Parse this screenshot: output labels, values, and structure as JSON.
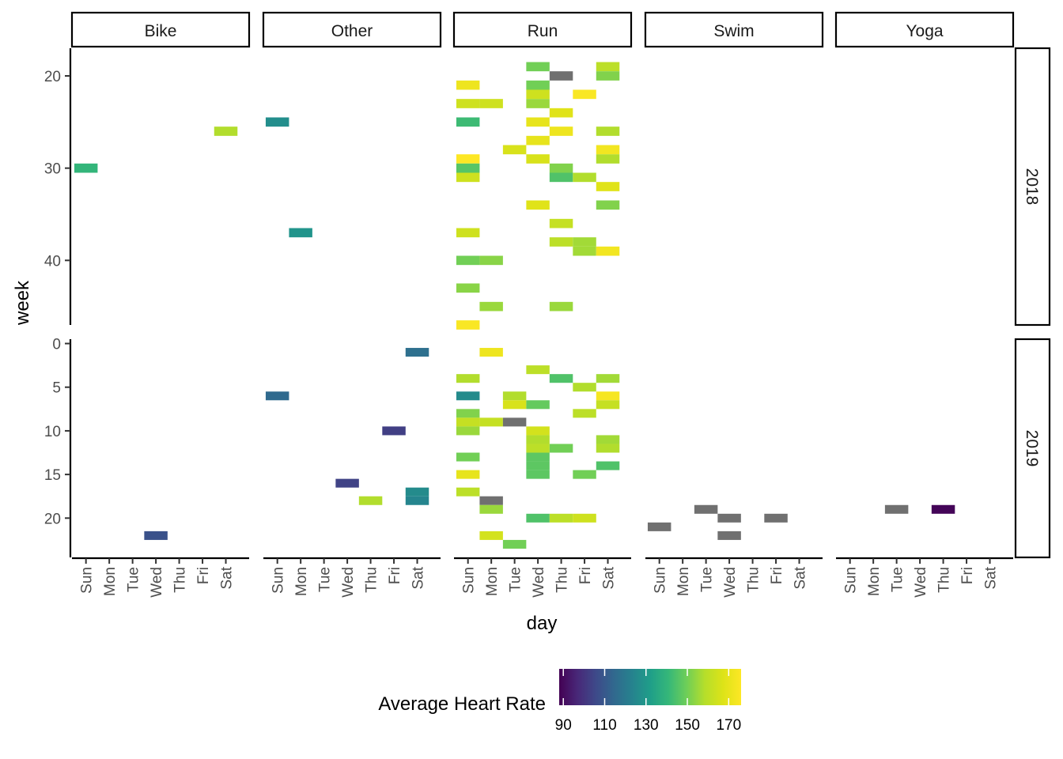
{
  "chart_data": {
    "type": "heatmap",
    "xlabel": "day",
    "ylabel": "week",
    "days": [
      "Sun",
      "Mon",
      "Tue",
      "Wed",
      "Thu",
      "Fri",
      "Sat"
    ],
    "activities": [
      "Bike",
      "Other",
      "Run",
      "Swim",
      "Yoga"
    ],
    "years": [
      "2018",
      "2019"
    ],
    "week_range": {
      "2018": [
        17,
        47
      ],
      "2019": [
        -0.5,
        24.5
      ]
    },
    "week_ticks": {
      "2018": [
        20,
        30,
        40
      ],
      "2019": [
        0,
        5,
        10,
        15,
        20
      ]
    },
    "y_reversed": true,
    "missing_color": "#707070",
    "legend": {
      "title": "Average Heart Rate",
      "position": "bottom",
      "min": 88,
      "max": 176,
      "ticks": [
        90,
        110,
        130,
        150,
        170
      ],
      "palette": "viridis"
    },
    "cells": [
      {
        "a": "Bike",
        "y": "2018",
        "w": 30,
        "d": "Sun",
        "hr": 140
      },
      {
        "a": "Bike",
        "y": "2018",
        "w": 26,
        "d": "Sat",
        "hr": 158
      },
      {
        "a": "Bike",
        "y": "2019",
        "w": 22,
        "d": "Wed",
        "hr": 108
      },
      {
        "a": "Other",
        "y": "2018",
        "w": 25,
        "d": "Sun",
        "hr": 127
      },
      {
        "a": "Other",
        "y": "2018",
        "w": 37,
        "d": "Mon",
        "hr": 129
      },
      {
        "a": "Other",
        "y": "2019",
        "w": 1,
        "d": "Sat",
        "hr": 117
      },
      {
        "a": "Other",
        "y": "2019",
        "w": 6,
        "d": "Sun",
        "hr": 115
      },
      {
        "a": "Other",
        "y": "2019",
        "w": 10,
        "d": "Fri",
        "hr": 103
      },
      {
        "a": "Other",
        "y": "2019",
        "w": 16,
        "d": "Wed",
        "hr": 104
      },
      {
        "a": "Other",
        "y": "2019",
        "w": 17,
        "d": "Sat",
        "hr": 126
      },
      {
        "a": "Other",
        "y": "2019",
        "w": 18,
        "d": "Sat",
        "hr": 124
      },
      {
        "a": "Other",
        "y": "2019",
        "w": 18,
        "d": "Thu",
        "hr": 158
      },
      {
        "a": "Run",
        "y": "2018",
        "w": 19,
        "d": "Wed",
        "hr": 150
      },
      {
        "a": "Run",
        "y": "2018",
        "w": 19,
        "d": "Sat",
        "hr": 160
      },
      {
        "a": "Run",
        "y": "2018",
        "w": 20,
        "d": "Thu",
        "hr": null
      },
      {
        "a": "Run",
        "y": "2018",
        "w": 20,
        "d": "Sat",
        "hr": 152
      },
      {
        "a": "Run",
        "y": "2018",
        "w": 21,
        "d": "Sun",
        "hr": 172
      },
      {
        "a": "Run",
        "y": "2018",
        "w": 21,
        "d": "Wed",
        "hr": 150
      },
      {
        "a": "Run",
        "y": "2018",
        "w": 22,
        "d": "Wed",
        "hr": 164
      },
      {
        "a": "Run",
        "y": "2018",
        "w": 22,
        "d": "Fri",
        "hr": 175
      },
      {
        "a": "Run",
        "y": "2018",
        "w": 23,
        "d": "Sun",
        "hr": 164
      },
      {
        "a": "Run",
        "y": "2018",
        "w": 23,
        "d": "Mon",
        "hr": 164
      },
      {
        "a": "Run",
        "y": "2018",
        "w": 23,
        "d": "Wed",
        "hr": 155
      },
      {
        "a": "Run",
        "y": "2018",
        "w": 24,
        "d": "Thu",
        "hr": 168
      },
      {
        "a": "Run",
        "y": "2018",
        "w": 25,
        "d": "Sun",
        "hr": 142
      },
      {
        "a": "Run",
        "y": "2018",
        "w": 25,
        "d": "Wed",
        "hr": 170
      },
      {
        "a": "Run",
        "y": "2018",
        "w": 26,
        "d": "Thu",
        "hr": 172
      },
      {
        "a": "Run",
        "y": "2018",
        "w": 26,
        "d": "Sat",
        "hr": 158
      },
      {
        "a": "Run",
        "y": "2018",
        "w": 27,
        "d": "Wed",
        "hr": 170
      },
      {
        "a": "Run",
        "y": "2018",
        "w": 28,
        "d": "Tue",
        "hr": 166
      },
      {
        "a": "Run",
        "y": "2018",
        "w": 28,
        "d": "Sat",
        "hr": 173
      },
      {
        "a": "Run",
        "y": "2018",
        "w": 29,
        "d": "Sun",
        "hr": 176
      },
      {
        "a": "Run",
        "y": "2018",
        "w": 29,
        "d": "Wed",
        "hr": 166
      },
      {
        "a": "Run",
        "y": "2018",
        "w": 29,
        "d": "Sat",
        "hr": 158
      },
      {
        "a": "Run",
        "y": "2018",
        "w": 30,
        "d": "Sun",
        "hr": 146
      },
      {
        "a": "Run",
        "y": "2018",
        "w": 30,
        "d": "Thu",
        "hr": 152
      },
      {
        "a": "Run",
        "y": "2018",
        "w": 31,
        "d": "Sun",
        "hr": 164
      },
      {
        "a": "Run",
        "y": "2018",
        "w": 31,
        "d": "Thu",
        "hr": 145
      },
      {
        "a": "Run",
        "y": "2018",
        "w": 31,
        "d": "Fri",
        "hr": 158
      },
      {
        "a": "Run",
        "y": "2018",
        "w": 32,
        "d": "Sat",
        "hr": 168
      },
      {
        "a": "Run",
        "y": "2018",
        "w": 34,
        "d": "Wed",
        "hr": 168
      },
      {
        "a": "Run",
        "y": "2018",
        "w": 34,
        "d": "Sat",
        "hr": 152
      },
      {
        "a": "Run",
        "y": "2018",
        "w": 36,
        "d": "Thu",
        "hr": 162
      },
      {
        "a": "Run",
        "y": "2018",
        "w": 37,
        "d": "Sun",
        "hr": 164
      },
      {
        "a": "Run",
        "y": "2018",
        "w": 38,
        "d": "Thu",
        "hr": 160
      },
      {
        "a": "Run",
        "y": "2018",
        "w": 38,
        "d": "Fri",
        "hr": 156
      },
      {
        "a": "Run",
        "y": "2018",
        "w": 39,
        "d": "Fri",
        "hr": 156
      },
      {
        "a": "Run",
        "y": "2018",
        "w": 39,
        "d": "Sat",
        "hr": 173
      },
      {
        "a": "Run",
        "y": "2018",
        "w": 40,
        "d": "Sun",
        "hr": 150
      },
      {
        "a": "Run",
        "y": "2018",
        "w": 40,
        "d": "Mon",
        "hr": 153
      },
      {
        "a": "Run",
        "y": "2018",
        "w": 43,
        "d": "Sun",
        "hr": 153
      },
      {
        "a": "Run",
        "y": "2018",
        "w": 45,
        "d": "Mon",
        "hr": 155
      },
      {
        "a": "Run",
        "y": "2018",
        "w": 45,
        "d": "Thu",
        "hr": 155
      },
      {
        "a": "Run",
        "y": "2018",
        "w": 47,
        "d": "Sun",
        "hr": 175
      },
      {
        "a": "Run",
        "y": "2019",
        "w": 1,
        "d": "Mon",
        "hr": 172
      },
      {
        "a": "Run",
        "y": "2019",
        "w": 3,
        "d": "Wed",
        "hr": 160
      },
      {
        "a": "Run",
        "y": "2019",
        "w": 4,
        "d": "Sun",
        "hr": 158
      },
      {
        "a": "Run",
        "y": "2019",
        "w": 4,
        "d": "Thu",
        "hr": 145
      },
      {
        "a": "Run",
        "y": "2019",
        "w": 4,
        "d": "Sat",
        "hr": 156
      },
      {
        "a": "Run",
        "y": "2019",
        "w": 5,
        "d": "Fri",
        "hr": 158
      },
      {
        "a": "Run",
        "y": "2019",
        "w": 6,
        "d": "Sun",
        "hr": 126
      },
      {
        "a": "Run",
        "y": "2019",
        "w": 6,
        "d": "Tue",
        "hr": 158
      },
      {
        "a": "Run",
        "y": "2019",
        "w": 6,
        "d": "Sat",
        "hr": 174
      },
      {
        "a": "Run",
        "y": "2019",
        "w": 7,
        "d": "Tue",
        "hr": 166
      },
      {
        "a": "Run",
        "y": "2019",
        "w": 7,
        "d": "Wed",
        "hr": 148
      },
      {
        "a": "Run",
        "y": "2019",
        "w": 7,
        "d": "Sat",
        "hr": 162
      },
      {
        "a": "Run",
        "y": "2019",
        "w": 8,
        "d": "Sun",
        "hr": 152
      },
      {
        "a": "Run",
        "y": "2019",
        "w": 8,
        "d": "Fri",
        "hr": 160
      },
      {
        "a": "Run",
        "y": "2019",
        "w": 9,
        "d": "Sun",
        "hr": 162
      },
      {
        "a": "Run",
        "y": "2019",
        "w": 9,
        "d": "Mon",
        "hr": 162
      },
      {
        "a": "Run",
        "y": "2019",
        "w": 9,
        "d": "Tue",
        "hr": null
      },
      {
        "a": "Run",
        "y": "2019",
        "w": 10,
        "d": "Sun",
        "hr": 155
      },
      {
        "a": "Run",
        "y": "2019",
        "w": 10,
        "d": "Wed",
        "hr": 165
      },
      {
        "a": "Run",
        "y": "2019",
        "w": 11,
        "d": "Wed",
        "hr": 158
      },
      {
        "a": "Run",
        "y": "2019",
        "w": 11,
        "d": "Sat",
        "hr": 156
      },
      {
        "a": "Run",
        "y": "2019",
        "w": 12,
        "d": "Wed",
        "hr": 160
      },
      {
        "a": "Run",
        "y": "2019",
        "w": 12,
        "d": "Thu",
        "hr": 150
      },
      {
        "a": "Run",
        "y": "2019",
        "w": 12,
        "d": "Sat",
        "hr": 158
      },
      {
        "a": "Run",
        "y": "2019",
        "w": 13,
        "d": "Sun",
        "hr": 150
      },
      {
        "a": "Run",
        "y": "2019",
        "w": 13,
        "d": "Wed",
        "hr": 147
      },
      {
        "a": "Run",
        "y": "2019",
        "w": 14,
        "d": "Wed",
        "hr": 147
      },
      {
        "a": "Run",
        "y": "2019",
        "w": 14,
        "d": "Sat",
        "hr": 145
      },
      {
        "a": "Run",
        "y": "2019",
        "w": 15,
        "d": "Sun",
        "hr": 170
      },
      {
        "a": "Run",
        "y": "2019",
        "w": 15,
        "d": "Wed",
        "hr": 147
      },
      {
        "a": "Run",
        "y": "2019",
        "w": 15,
        "d": "Fri",
        "hr": 150
      },
      {
        "a": "Run",
        "y": "2019",
        "w": 17,
        "d": "Sun",
        "hr": 160
      },
      {
        "a": "Run",
        "y": "2019",
        "w": 18,
        "d": "Mon",
        "hr": null
      },
      {
        "a": "Run",
        "y": "2019",
        "w": 19,
        "d": "Mon",
        "hr": 155
      },
      {
        "a": "Run",
        "y": "2019",
        "w": 20,
        "d": "Wed",
        "hr": 145
      },
      {
        "a": "Run",
        "y": "2019",
        "w": 20,
        "d": "Thu",
        "hr": 160
      },
      {
        "a": "Run",
        "y": "2019",
        "w": 20,
        "d": "Fri",
        "hr": 164
      },
      {
        "a": "Run",
        "y": "2019",
        "w": 22,
        "d": "Mon",
        "hr": 165
      },
      {
        "a": "Run",
        "y": "2019",
        "w": 23,
        "d": "Tue",
        "hr": 150
      },
      {
        "a": "Swim",
        "y": "2019",
        "w": 19,
        "d": "Tue",
        "hr": null
      },
      {
        "a": "Swim",
        "y": "2019",
        "w": 20,
        "d": "Wed",
        "hr": null
      },
      {
        "a": "Swim",
        "y": "2019",
        "w": 20,
        "d": "Fri",
        "hr": null
      },
      {
        "a": "Swim",
        "y": "2019",
        "w": 21,
        "d": "Sun",
        "hr": null
      },
      {
        "a": "Swim",
        "y": "2019",
        "w": 22,
        "d": "Wed",
        "hr": null
      },
      {
        "a": "Yoga",
        "y": "2019",
        "w": 19,
        "d": "Tue",
        "hr": null
      },
      {
        "a": "Yoga",
        "y": "2019",
        "w": 19,
        "d": "Thu",
        "hr": 89
      }
    ]
  }
}
